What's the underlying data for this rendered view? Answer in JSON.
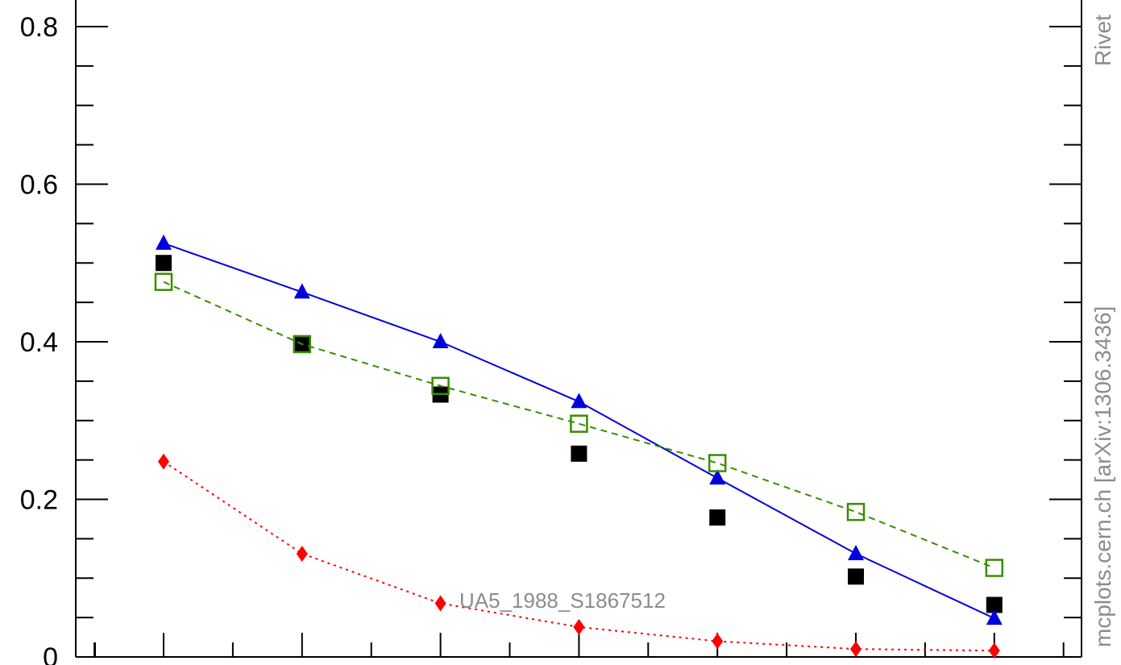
{
  "chart_data": {
    "type": "scatter",
    "ylim": [
      0,
      0.8
    ],
    "y_ticks": [
      {
        "value": 0,
        "label": "0"
      },
      {
        "value": 0.2,
        "label": "0.2"
      },
      {
        "value": 0.4,
        "label": "0.4"
      },
      {
        "value": 0.6,
        "label": "0.6"
      },
      {
        "value": 0.8,
        "label": "0.8"
      }
    ],
    "x": [
      1,
      2,
      3,
      4,
      5,
      6,
      7
    ],
    "series": [
      {
        "key": "data",
        "style": "filled-square",
        "color": "#000000",
        "line": "none",
        "values": [
          0.5,
          0.397,
          0.333,
          0.258,
          0.177,
          0.102,
          0.066
        ]
      },
      {
        "key": "blue",
        "style": "filled-triangle",
        "color": "#0000dd",
        "line": "solid",
        "values": [
          0.525,
          0.463,
          0.4,
          0.324,
          0.227,
          0.131,
          0.049
        ]
      },
      {
        "key": "green",
        "style": "open-square",
        "color": "#3a8c00",
        "line": "dashed",
        "values": [
          0.476,
          0.397,
          0.344,
          0.296,
          0.246,
          0.184,
          0.113
        ]
      },
      {
        "key": "red",
        "style": "filled-diamond",
        "color": "#ff0000",
        "line": "dotted",
        "values": [
          0.248,
          0.131,
          0.068,
          0.038,
          0.02,
          0.01,
          0.008
        ]
      }
    ],
    "annotation": "UA5_1988_S1867512",
    "watermark_rivet": "Rivet",
    "watermark_mcplots": "mcplots.cern.ch [arXiv:1306.3436]"
  }
}
